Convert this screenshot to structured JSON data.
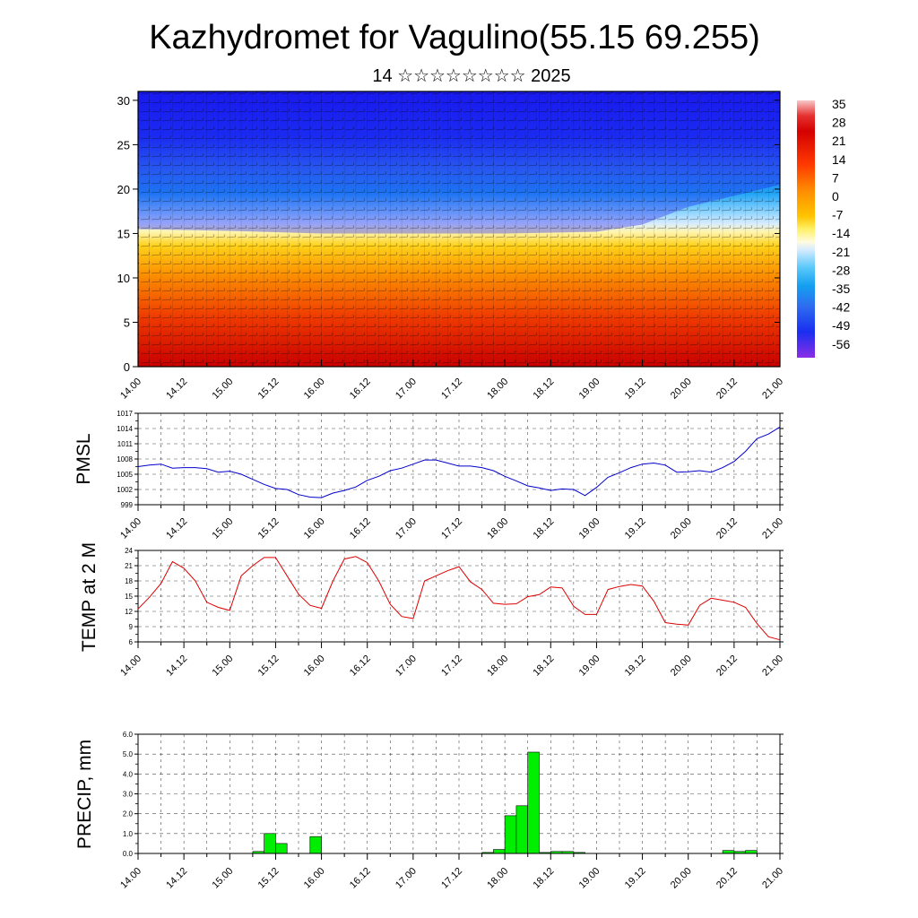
{
  "header": {
    "title": "Kazhydromet for Vagulino(55.15 69.255)",
    "subtitle": "14 ☆☆☆☆☆☆☆☆ 2025"
  },
  "x_ticks": [
    "14.00",
    "14.12",
    "15.00",
    "15.12",
    "16.00",
    "16.12",
    "17.00",
    "17.12",
    "18.00",
    "18.12",
    "19.00",
    "19.12",
    "20.00",
    "20.12",
    "21.00"
  ],
  "chart_data": [
    {
      "type": "heatmap",
      "title": "",
      "y_ticks": [
        0,
        5,
        10,
        15,
        20,
        25,
        30
      ],
      "ylim": [
        0,
        31
      ],
      "xlim_hours": [
        0,
        168
      ],
      "colorbar": {
        "labels": [
          "35",
          "28",
          "21",
          "14",
          "7",
          "0",
          "-7",
          "-14",
          "-21",
          "-28",
          "-35",
          "-42",
          "-49",
          "-56"
        ],
        "vmin": -63,
        "vmax": 38
      },
      "freezing_level_profile": [
        [
          0,
          15.5
        ],
        [
          24,
          15.3
        ],
        [
          48,
          15.0
        ],
        [
          72,
          15.0
        ],
        [
          96,
          15.0
        ],
        [
          120,
          15.2
        ],
        [
          132,
          16.0
        ],
        [
          144,
          18.0
        ],
        [
          168,
          20.5
        ]
      ],
      "colors": {
        "warm": "#d40000",
        "cold": "#1a24f0"
      }
    },
    {
      "type": "line",
      "ylabel": "PMSL",
      "y_ticks": [
        999,
        1002,
        1005,
        1008,
        1011,
        1014,
        1017
      ],
      "ylim": [
        999,
        1017
      ],
      "xlim_hours": [
        0,
        168
      ],
      "color": "#0000cc",
      "series": [
        {
          "x": [
            0,
            3,
            6,
            9,
            12,
            15,
            18,
            21,
            24,
            27,
            30,
            33,
            36,
            39,
            42,
            45,
            48,
            51,
            54,
            57,
            60,
            63,
            66,
            69,
            72,
            75,
            78,
            81,
            84,
            87,
            90,
            93,
            96,
            99,
            102,
            105,
            108,
            111,
            114,
            117,
            120,
            123,
            126,
            129,
            132,
            135,
            138,
            141,
            144,
            147,
            150,
            153,
            156,
            159,
            162,
            165,
            168
          ],
          "values": [
            1006.5,
            1006.8,
            1007.0,
            1006.2,
            1006.3,
            1006.3,
            1006.1,
            1005.4,
            1005.6,
            1005.0,
            1004.0,
            1003.0,
            1002.2,
            1002.0,
            1001.0,
            1000.5,
            1000.4,
            1001.3,
            1001.8,
            1002.5,
            1003.8,
            1004.6,
            1005.7,
            1006.2,
            1007.0,
            1007.8,
            1007.8,
            1007.2,
            1006.6,
            1006.6,
            1006.3,
            1005.7,
            1004.6,
            1003.7,
            1002.7,
            1002.3,
            1001.8,
            1002.1,
            1002.0,
            1000.8,
            1002.4,
            1004.4,
            1005.3,
            1006.3,
            1007.0,
            1007.2,
            1006.8,
            1005.4,
            1005.5,
            1005.7,
            1005.4,
            1006.3,
            1007.5,
            1009.5,
            1012.0,
            1012.9,
            1014.3
          ]
        }
      ]
    },
    {
      "type": "line",
      "ylabel": "TEMP at 2 M",
      "y_ticks": [
        6,
        9,
        12,
        15,
        18,
        21,
        24
      ],
      "ylim": [
        6,
        24
      ],
      "xlim_hours": [
        0,
        168
      ],
      "color": "#dd0000",
      "series": [
        {
          "x": [
            0,
            3,
            6,
            9,
            12,
            15,
            18,
            21,
            24,
            27,
            30,
            33,
            36,
            39,
            42,
            45,
            48,
            51,
            54,
            57,
            60,
            63,
            66,
            69,
            72,
            75,
            78,
            81,
            84,
            87,
            90,
            93,
            96,
            99,
            102,
            105,
            108,
            111,
            114,
            117,
            120,
            123,
            126,
            129,
            132,
            135,
            138,
            141,
            144,
            147,
            150,
            153,
            156,
            159,
            162,
            165,
            168
          ],
          "values": [
            12.5,
            14.8,
            17.5,
            21.8,
            20.5,
            18.0,
            13.8,
            12.8,
            12.2,
            19.0,
            21.0,
            22.6,
            22.6,
            19.0,
            15.4,
            13.2,
            12.6,
            18.0,
            22.3,
            22.8,
            21.6,
            18.0,
            13.4,
            11.0,
            10.6,
            18.0,
            19.0,
            20.0,
            20.8,
            17.8,
            16.3,
            13.6,
            13.4,
            13.5,
            14.9,
            15.3,
            16.8,
            16.6,
            13.0,
            11.4,
            11.4,
            16.3,
            16.9,
            17.3,
            17.0,
            14.0,
            9.8,
            9.5,
            9.3,
            13.2,
            14.6,
            14.2,
            13.8,
            12.8,
            9.6,
            7.0,
            6.4
          ]
        }
      ]
    },
    {
      "type": "bar",
      "ylabel": "PRECIP, mm",
      "y_ticks": [
        "0.0",
        "1.0",
        "2.0",
        "3.0",
        "4.0",
        "5.0",
        "6.0"
      ],
      "ylim": [
        0,
        6
      ],
      "xlim_hours": [
        0,
        168
      ],
      "color": "#00ee00",
      "bar_width_hours": 3,
      "bars_start_hour": [
        30,
        33,
        36,
        45,
        90,
        93,
        96,
        99,
        102,
        105,
        108,
        111,
        114,
        153,
        156,
        159
      ],
      "values": [
        0.1,
        1.0,
        0.5,
        0.85,
        0.05,
        0.2,
        1.9,
        2.4,
        5.1,
        0.05,
        0.1,
        0.1,
        0.05,
        0.15,
        0.1,
        0.15
      ]
    }
  ]
}
